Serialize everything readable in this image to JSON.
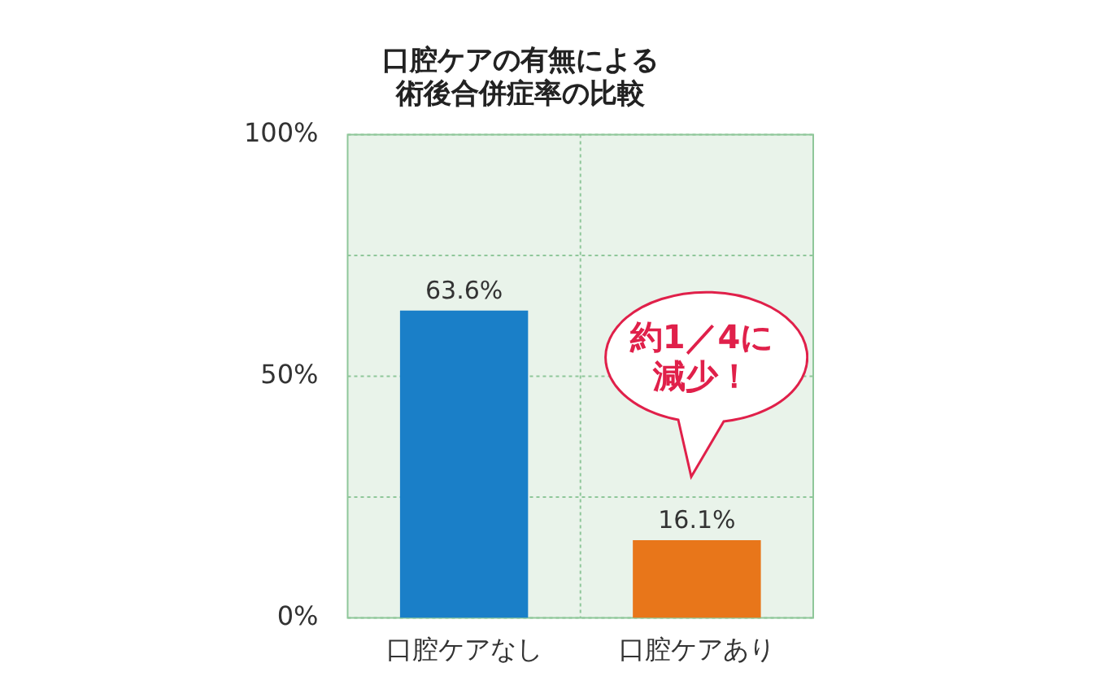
{
  "chart_data": {
    "type": "bar",
    "title": "口腔ケアの有無による術後合併症率の比較",
    "categories": [
      "口腔ケアなし",
      "口腔ケアあり"
    ],
    "values": [
      63.6,
      16.1
    ],
    "colors": [
      "#1a7fc8",
      "#e8761a"
    ],
    "value_labels": [
      "63.6%",
      "16.1%"
    ],
    "ylim": [
      0,
      100
    ],
    "yticks": [
      {
        "value": 0,
        "label": "0%"
      },
      {
        "value": 25,
        "label": null
      },
      {
        "value": 50,
        "label": "50%"
      },
      {
        "value": 75,
        "label": null
      },
      {
        "value": 100,
        "label": "100%"
      }
    ],
    "grid": true,
    "legend": false,
    "annotations": [
      "約1／4に減少！"
    ]
  }
}
